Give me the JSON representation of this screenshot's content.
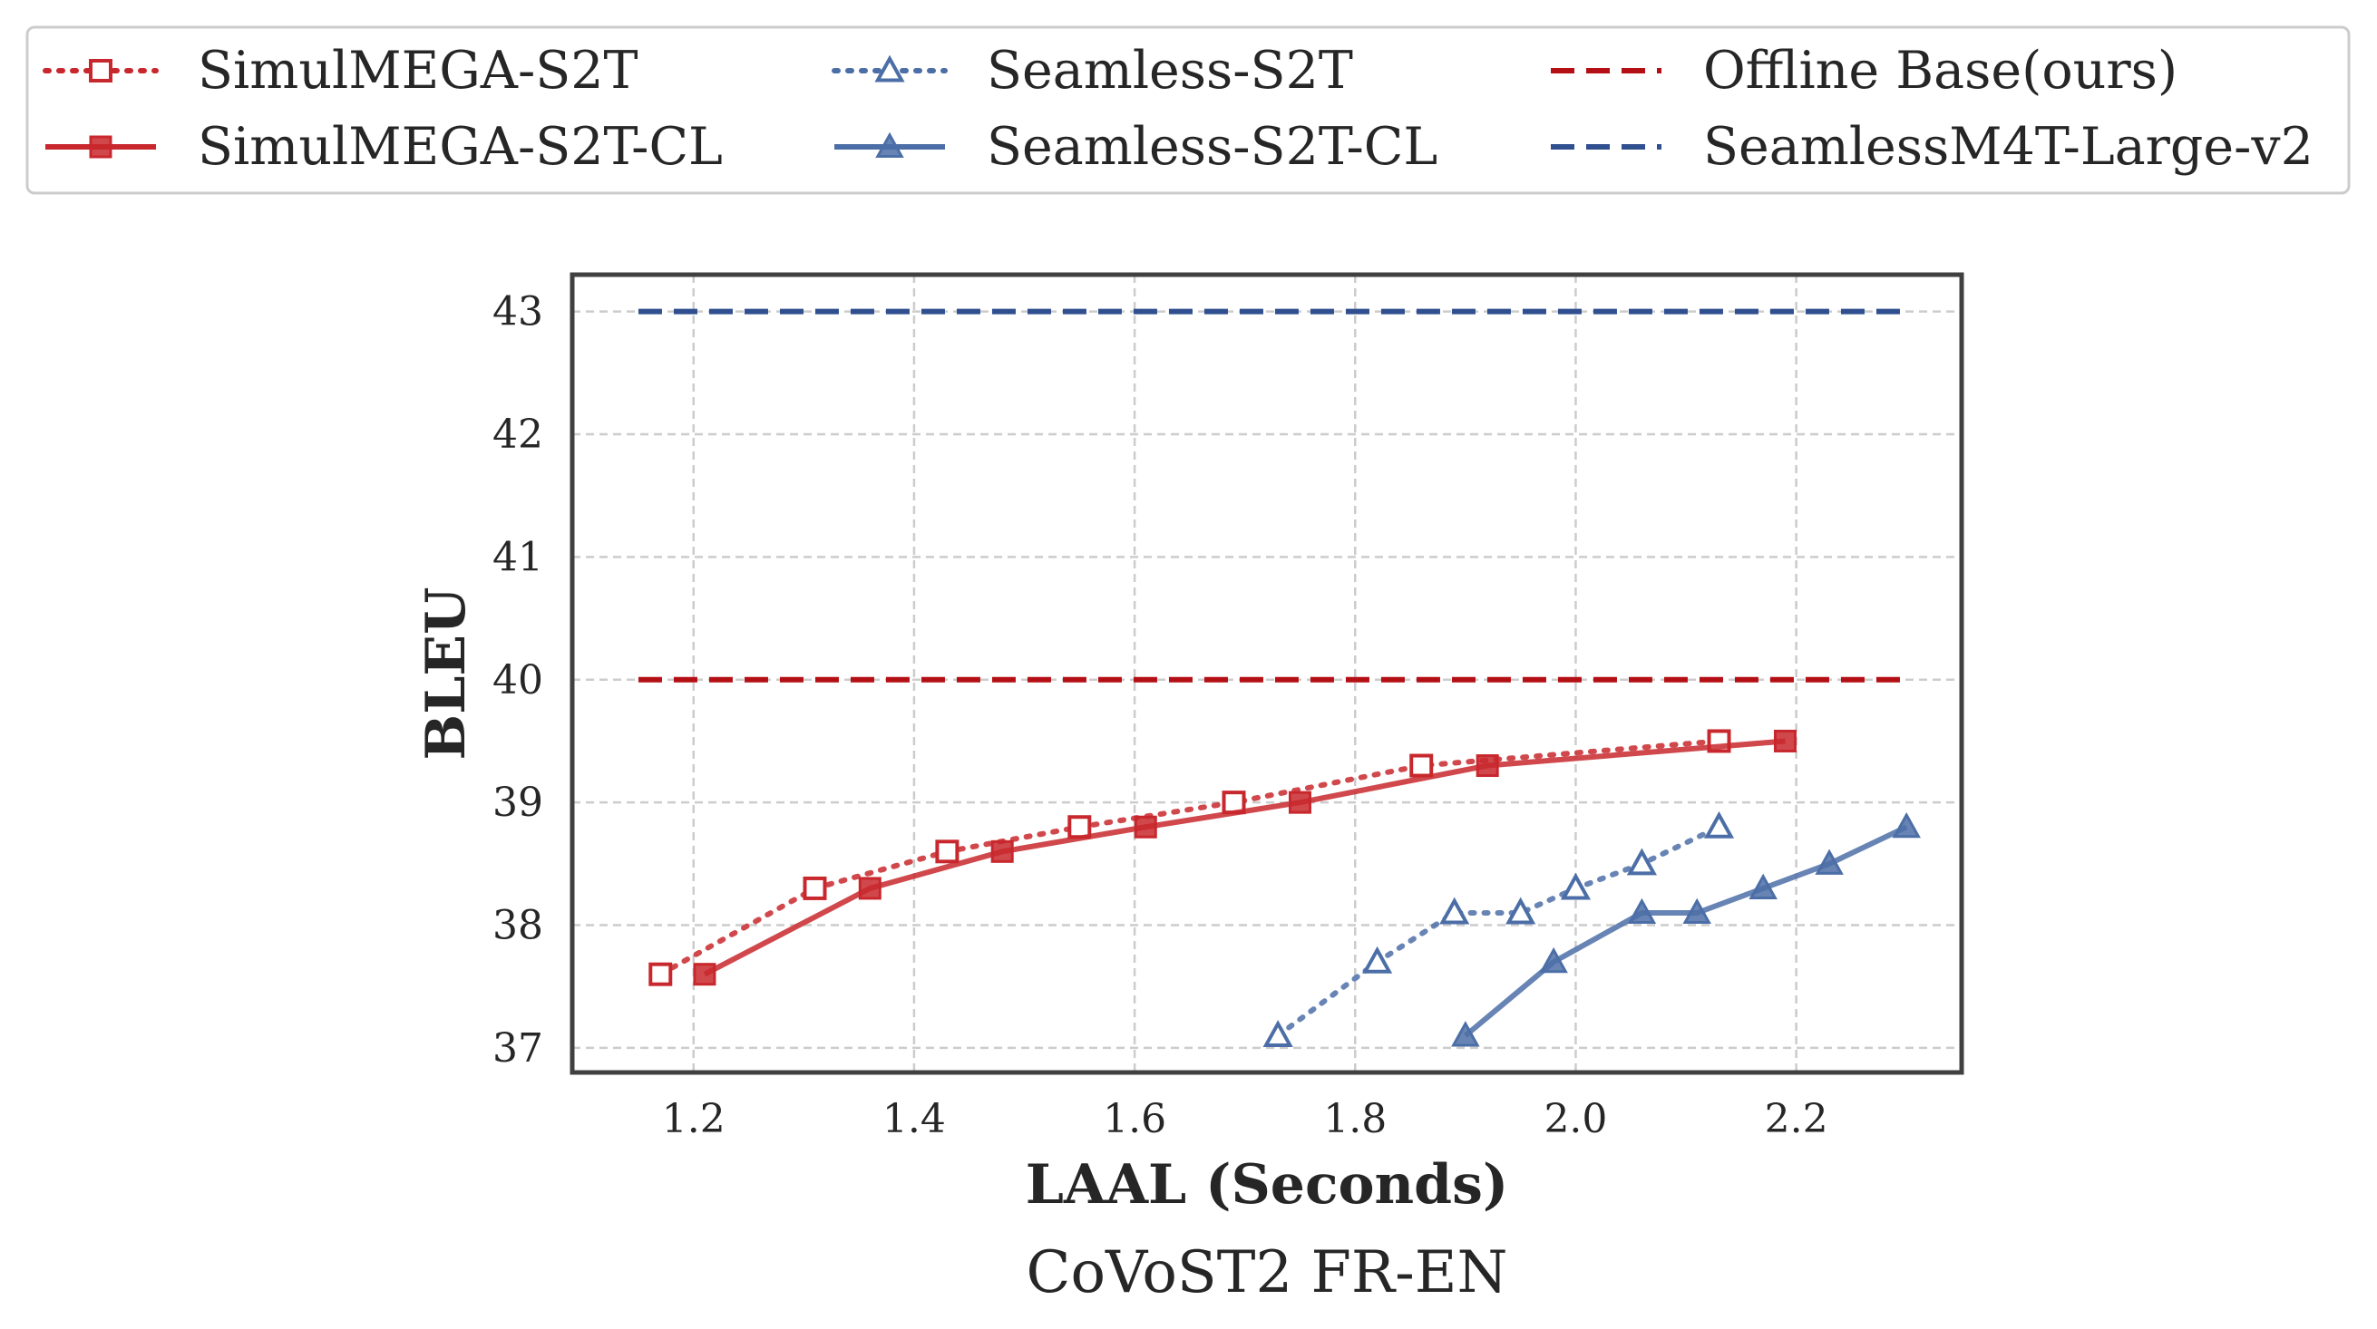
{
  "chart_data": {
    "type": "line",
    "title": "",
    "caption": "CoVoST2 FR-EN",
    "xlabel": "LAAL (Seconds)",
    "ylabel": "BLEU",
    "xlim": [
      1.09,
      2.35
    ],
    "ylim": [
      36.8,
      43.3
    ],
    "x_ticks": [
      "1.2",
      "1.4",
      "1.6",
      "1.8",
      "2.0",
      "2.2"
    ],
    "y_ticks": [
      "37",
      "38",
      "39",
      "40",
      "41",
      "42",
      "43"
    ],
    "grid": true,
    "legend_position": "top",
    "series": [
      {
        "name": "SimulMEGA-S2T",
        "color": "#c8282d",
        "line": "dotted",
        "marker": "square-open",
        "x": [
          1.17,
          1.31,
          1.43,
          1.55,
          1.69,
          1.86,
          2.13
        ],
        "y": [
          37.6,
          38.3,
          38.6,
          38.8,
          39.0,
          39.3,
          39.5
        ]
      },
      {
        "name": "SimulMEGA-S2T-CL",
        "color": "#c8282d",
        "line": "solid",
        "marker": "square-filled",
        "x": [
          1.21,
          1.36,
          1.48,
          1.61,
          1.75,
          1.92,
          2.19
        ],
        "y": [
          37.6,
          38.3,
          38.6,
          38.8,
          39.0,
          39.3,
          39.5
        ]
      },
      {
        "name": "Seamless-S2T",
        "color": "#4c6ea7",
        "line": "dotted",
        "marker": "triangle-open",
        "x": [
          1.73,
          1.82,
          1.89,
          1.95,
          2.0,
          2.06,
          2.13
        ],
        "y": [
          37.1,
          37.7,
          38.1,
          38.1,
          38.3,
          38.5,
          38.8
        ]
      },
      {
        "name": "Seamless-S2T-CL",
        "color": "#4c6ea7",
        "line": "solid",
        "marker": "triangle-filled",
        "x": [
          1.9,
          1.98,
          2.06,
          2.11,
          2.17,
          2.23,
          2.3
        ],
        "y": [
          37.1,
          37.7,
          38.1,
          38.1,
          38.3,
          38.5,
          38.8
        ]
      },
      {
        "name": "Offline Base(ours)",
        "color": "#b40f14",
        "line": "dashed",
        "marker": "none",
        "x": [
          1.15,
          2.3
        ],
        "y": [
          40.0,
          40.0
        ]
      },
      {
        "name": "SeamlessM4T-Large-v2",
        "color": "#2f4f8f",
        "line": "dashed",
        "marker": "none",
        "x": [
          1.15,
          2.3
        ],
        "y": [
          43.0,
          43.0
        ]
      }
    ]
  }
}
